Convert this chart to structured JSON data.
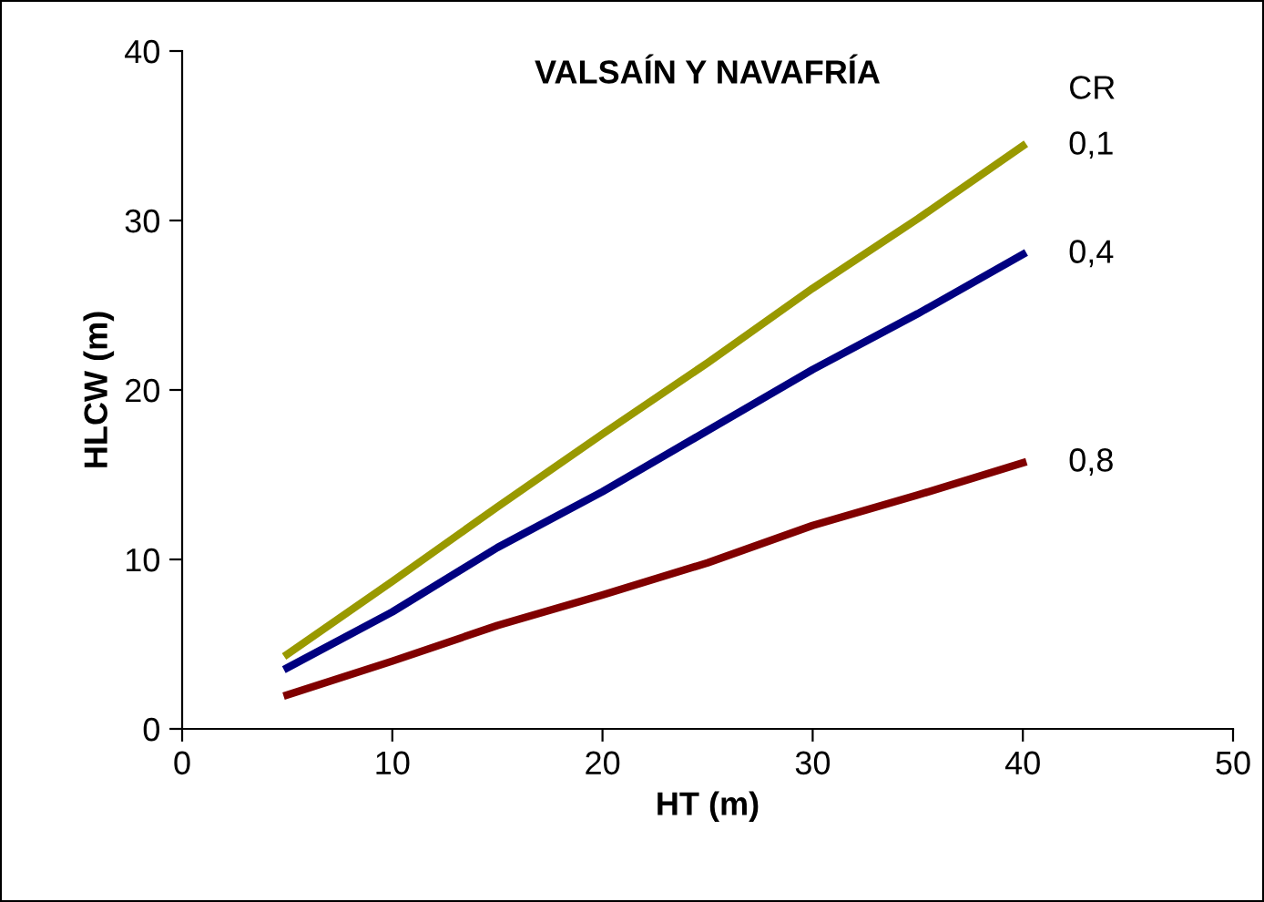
{
  "chart_data": {
    "type": "line",
    "title": "VALSAÍN Y NAVAFRÍA",
    "xlabel": "HT (m)",
    "ylabel": "HLCW (m)",
    "legend_title": "CR",
    "x": [
      5,
      10,
      15,
      20,
      25,
      30,
      35,
      40
    ],
    "series": [
      {
        "name": "0,1",
        "color": "#999900",
        "values": [
          4.4,
          8.7,
          13.1,
          17.4,
          21.6,
          26.0,
          30.1,
          34.4
        ]
      },
      {
        "name": "0,4",
        "color": "#000080",
        "values": [
          3.6,
          6.9,
          10.7,
          14.0,
          17.6,
          21.2,
          24.5,
          28.0
        ]
      },
      {
        "name": "0,8",
        "color": "#800000",
        "values": [
          2.0,
          4.0,
          6.1,
          7.9,
          9.8,
          12.0,
          13.8,
          15.7
        ]
      }
    ],
    "xlim": [
      0,
      50
    ],
    "xticks": [
      0,
      10,
      20,
      30,
      40,
      50
    ],
    "ylim": [
      0,
      40
    ],
    "yticks": [
      0,
      10,
      20,
      30,
      40
    ],
    "grid": false,
    "legend": false,
    "marker": "none",
    "line_style": "solid"
  }
}
